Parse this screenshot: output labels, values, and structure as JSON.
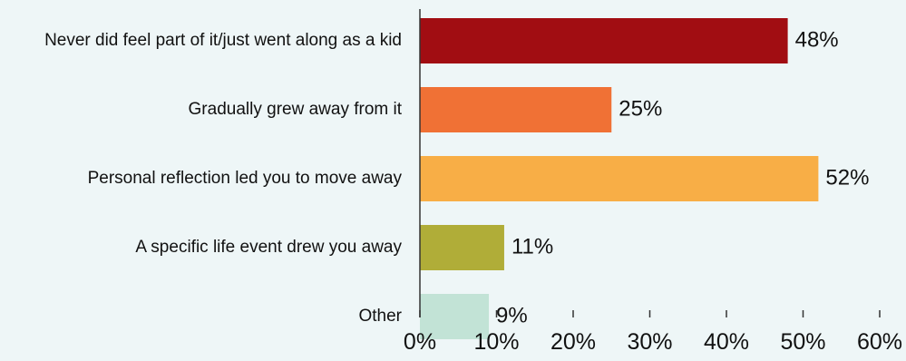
{
  "chart_data": {
    "type": "bar",
    "orientation": "horizontal",
    "categories": [
      "Never did feel part of it/just went along as a kid",
      "Gradually grew away from it",
      "Personal reflection led you to move away",
      "A specific life event drew you away",
      "Other"
    ],
    "values": [
      48,
      25,
      52,
      11,
      9
    ],
    "value_labels": [
      "48%",
      "25%",
      "52%",
      "11%",
      "9%"
    ],
    "colors": [
      "#a10d12",
      "#f07135",
      "#f8ae46",
      "#b0ad38",
      "#c2e3d6"
    ],
    "xlim": [
      0,
      60
    ],
    "x_ticks": [
      0,
      10,
      20,
      30,
      40,
      50,
      60
    ],
    "x_tick_labels": [
      "0%",
      "10%",
      "20%",
      "30%",
      "40%",
      "50%",
      "60%"
    ],
    "grid": false,
    "title": "",
    "xlabel": "",
    "ylabel": ""
  },
  "colors": {
    "background": "#eef6f7",
    "axis": "#333333",
    "text": "#111111"
  }
}
